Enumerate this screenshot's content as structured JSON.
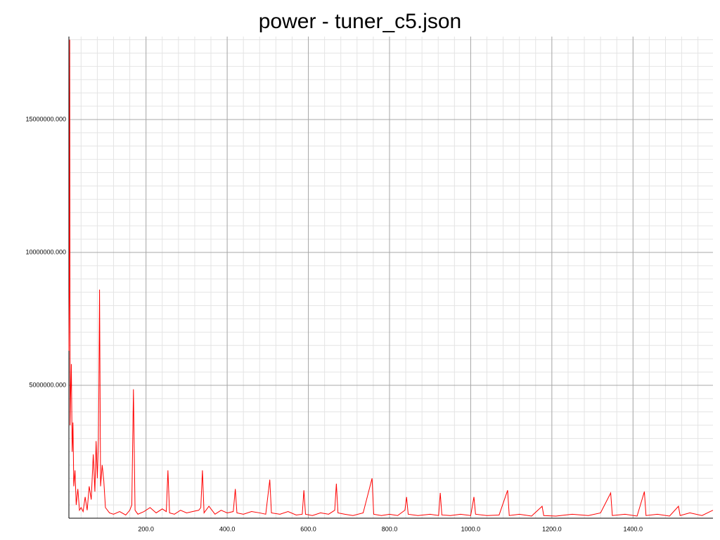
{
  "chart_data": {
    "type": "line",
    "title": "power - tuner_c5.json",
    "color": "#ff0000",
    "grid": true,
    "minor_grid": true,
    "xlim": [
      10,
      1597
    ],
    "ylim": [
      0,
      18120000
    ],
    "xticks": [
      {
        "value": 200,
        "label": "200.0"
      },
      {
        "value": 400,
        "label": "400.0"
      },
      {
        "value": 600,
        "label": "600.0"
      },
      {
        "value": 800,
        "label": "800.0"
      },
      {
        "value": 1000,
        "label": "1000.0"
      },
      {
        "value": 1200,
        "label": "1200.0"
      },
      {
        "value": 1400,
        "label": "1400.0"
      }
    ],
    "yticks": [
      {
        "value": 5000000,
        "label": "5000000.000"
      },
      {
        "value": 10000000,
        "label": "10000000.000"
      },
      {
        "value": 15000000,
        "label": "15000000.000"
      }
    ],
    "x": [
      10,
      11,
      12,
      13,
      14,
      16,
      18,
      20,
      22,
      25,
      28,
      32,
      36,
      40,
      45,
      50,
      55,
      60,
      65,
      70,
      74,
      77,
      80,
      83,
      85.5,
      88,
      92,
      96,
      100,
      110,
      120,
      135,
      150,
      160,
      165,
      169,
      173,
      180,
      195,
      210,
      225,
      240,
      250,
      254,
      258,
      270,
      285,
      300,
      315,
      330,
      335,
      339,
      343,
      355,
      370,
      385,
      400,
      415,
      420,
      424,
      440,
      460,
      480,
      495,
      505,
      509,
      530,
      550,
      570,
      585,
      589,
      593,
      610,
      630,
      650,
      665,
      669,
      673,
      690,
      710,
      735,
      757,
      761,
      780,
      800,
      820,
      838,
      842,
      846,
      870,
      900,
      921,
      925,
      929,
      950,
      975,
      1000,
      1008,
      1012,
      1040,
      1070,
      1091,
      1095,
      1120,
      1150,
      1176,
      1180,
      1210,
      1250,
      1290,
      1320,
      1345,
      1349,
      1380,
      1410,
      1428,
      1432,
      1460,
      1490,
      1512,
      1516,
      1540,
      1570,
      1590,
      1597
    ],
    "values": [
      6300000,
      9000000,
      18000000,
      3500000,
      4500000,
      5800000,
      2500000,
      3600000,
      1200000,
      1800000,
      500000,
      1100000,
      300000,
      400000,
      250000,
      800000,
      300000,
      1200000,
      700000,
      2400000,
      1000000,
      2900000,
      1500000,
      3000000,
      8600000,
      1200000,
      2000000,
      1400000,
      400000,
      200000,
      150000,
      250000,
      120000,
      300000,
      500000,
      4850000,
      300000,
      150000,
      250000,
      400000,
      200000,
      350000,
      250000,
      1800000,
      200000,
      150000,
      300000,
      200000,
      250000,
      300000,
      400000,
      1800000,
      200000,
      450000,
      150000,
      300000,
      200000,
      250000,
      1100000,
      200000,
      150000,
      250000,
      200000,
      150000,
      1450000,
      200000,
      150000,
      250000,
      120000,
      150000,
      1050000,
      150000,
      100000,
      200000,
      150000,
      300000,
      1300000,
      200000,
      150000,
      100000,
      200000,
      1500000,
      150000,
      100000,
      150000,
      100000,
      300000,
      800000,
      150000,
      100000,
      150000,
      100000,
      950000,
      120000,
      100000,
      150000,
      100000,
      800000,
      150000,
      100000,
      120000,
      1050000,
      100000,
      150000,
      80000,
      450000,
      100000,
      80000,
      150000,
      100000,
      200000,
      950000,
      100000,
      150000,
      80000,
      1000000,
      100000,
      150000,
      80000,
      450000,
      100000,
      200000,
      100000,
      250000,
      300000
    ]
  }
}
